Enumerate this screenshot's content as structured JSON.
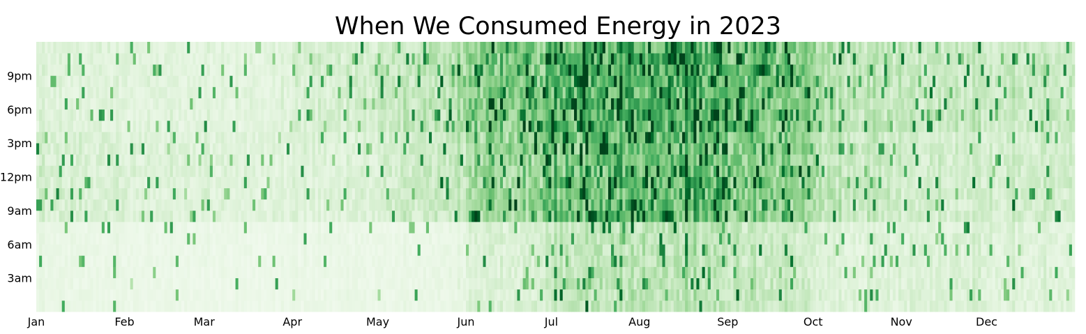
{
  "chart_data": {
    "type": "heatmap",
    "title": "When We Consumed Energy in 2023",
    "xlabel": "",
    "ylabel": "",
    "x_tick_labels": [
      "Jan",
      "Feb",
      "Mar",
      "Apr",
      "May",
      "Jun",
      "Jul",
      "Aug",
      "Sep",
      "Oct",
      "Nov",
      "Dec"
    ],
    "y_tick_labels": [
      "3am",
      "6am",
      "9am",
      "12pm",
      "3pm",
      "6pm",
      "9pm"
    ],
    "x_range": [
      "2023-01-01",
      "2023-12-31"
    ],
    "y_range": [
      "12am",
      "12am"
    ],
    "colormap": "Greens",
    "color_low": "#f7fcf5",
    "color_high": "#00441b",
    "grid": false,
    "legend": "none",
    "monthly_intensity": [
      {
        "month": "Jan",
        "night": 0.1,
        "day": 0.2,
        "evening": 0.16
      },
      {
        "month": "Feb",
        "night": 0.09,
        "day": 0.17,
        "evening": 0.15
      },
      {
        "month": "Mar",
        "night": 0.08,
        "day": 0.15,
        "evening": 0.13
      },
      {
        "month": "Apr",
        "night": 0.09,
        "day": 0.16,
        "evening": 0.2
      },
      {
        "month": "May",
        "night": 0.1,
        "day": 0.25,
        "evening": 0.3
      },
      {
        "month": "Jun",
        "night": 0.18,
        "day": 0.42,
        "evening": 0.5
      },
      {
        "month": "Jul",
        "night": 0.3,
        "day": 0.55,
        "evening": 0.62
      },
      {
        "month": "Aug",
        "night": 0.32,
        "day": 0.6,
        "evening": 0.65
      },
      {
        "month": "Sep",
        "night": 0.25,
        "day": 0.45,
        "evening": 0.5
      },
      {
        "month": "Oct",
        "night": 0.15,
        "day": 0.25,
        "evening": 0.28
      },
      {
        "month": "Nov",
        "night": 0.18,
        "day": 0.22,
        "evening": 0.26
      },
      {
        "month": "Dec",
        "night": 0.16,
        "day": 0.22,
        "evening": 0.26
      }
    ]
  }
}
